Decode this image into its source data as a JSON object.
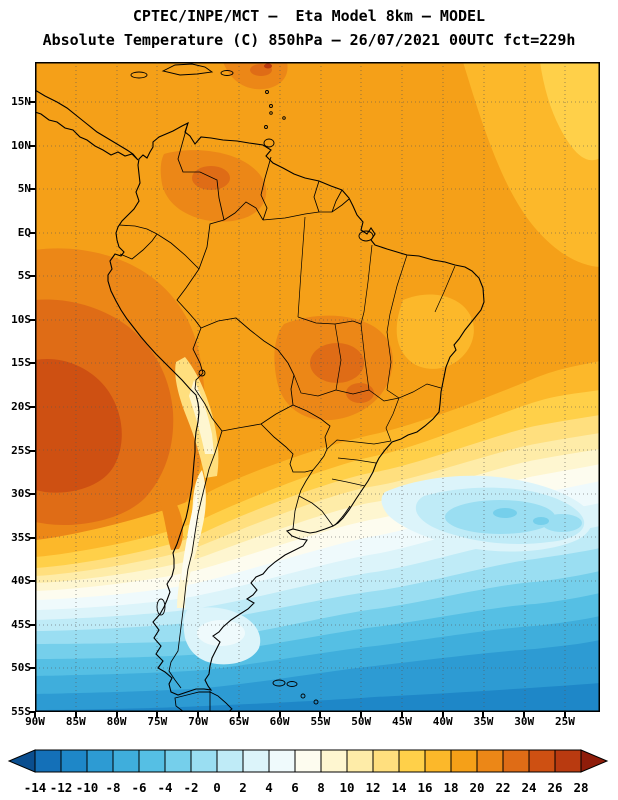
{
  "header": {
    "line1": "CPTEC/INPE/MCT —  Eta Model 8km — MODEL",
    "line2": "Absolute Temperature (C) 850hPa — 26/07/2021 00UTC fct=229h"
  },
  "map": {
    "lat_labels": [
      "15N",
      "10N",
      "5N",
      "EQ",
      "5S",
      "10S",
      "15S",
      "20S",
      "25S",
      "30S",
      "35S",
      "40S",
      "45S",
      "50S",
      "55S"
    ],
    "lon_labels": [
      "90W",
      "85W",
      "80W",
      "75W",
      "70W",
      "65W",
      "60W",
      "55W",
      "50W",
      "45W",
      "40W",
      "35W",
      "30W",
      "25W"
    ]
  },
  "colorbar": {
    "tick_labels": [
      "-14",
      "-12",
      "-10",
      "-8",
      "-6",
      "-4",
      "-2",
      "0",
      "2",
      "4",
      "6",
      "8",
      "10",
      "12",
      "14",
      "16",
      "18",
      "20",
      "22",
      "24",
      "26",
      "28"
    ],
    "colors": [
      "#0A4E8F",
      "#1470B8",
      "#1E87C8",
      "#2D9BD3",
      "#3FAEDC",
      "#55BFE4",
      "#75CFEB",
      "#9ADEF2",
      "#BFEBF7",
      "#DCF4FA",
      "#EFFAFC",
      "#FDFCEF",
      "#FEF6D0",
      "#FEECA8",
      "#FFDF7E",
      "#FFD049",
      "#FCB82A",
      "#F5A018",
      "#EC8717",
      "#DF6C16",
      "#CE5012",
      "#B93A10",
      "#8F1D0A"
    ]
  },
  "chart_data": {
    "type": "heatmap",
    "title": "Absolute Temperature (C) 850hPa",
    "source": "CPTEC/INPE/MCT",
    "model": "Eta Model 8km",
    "valid_time": "26/07/2021 00UTC fct=229h",
    "units": "C",
    "lat_range": [
      "55S",
      "15N"
    ],
    "lon_range": [
      "90W",
      "25W"
    ],
    "scale_min": -14,
    "scale_max": 28,
    "scale_step": 2,
    "legend_position": "bottom",
    "grid": "dotted 5-degree graticule"
  }
}
